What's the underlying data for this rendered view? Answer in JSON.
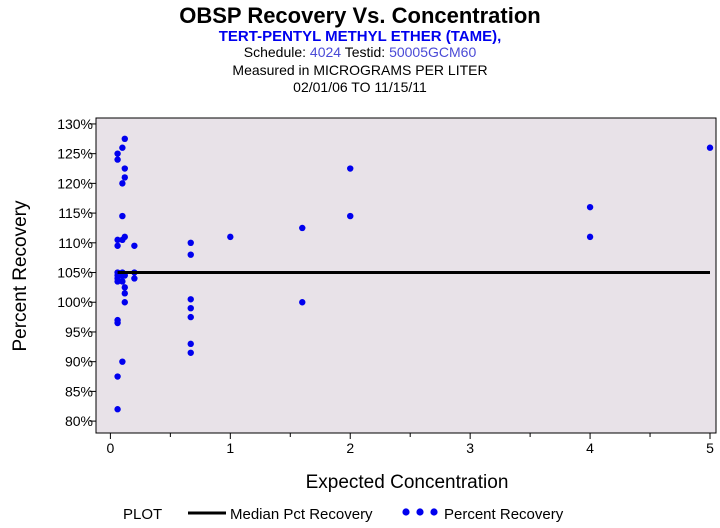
{
  "header": {
    "title": "OBSP Recovery Vs. Concentration",
    "subtitle": "TERT-PENTYL METHYL ETHER (TAME),",
    "schedule_label": "Schedule:",
    "schedule_value": "4024",
    "testid_label": "Testid:",
    "testid_value": "50005GCM60",
    "measured": "Measured in  MICROGRAMS PER LITER",
    "date_range": "02/01/06 TO 11/15/11"
  },
  "legend": {
    "title": "PLOT",
    "median_label": "Median Pct Recovery",
    "recovery_label": "Percent Recovery"
  },
  "colors": {
    "plot_bg": "#e8e2e8",
    "point": "#0000ee",
    "median_line": "#000000",
    "text_blue": "#0000ee"
  },
  "chart_data": {
    "type": "scatter",
    "title": "OBSP Recovery Vs. Concentration",
    "xlabel": "Expected Concentration",
    "ylabel": "Percent Recovery",
    "xlim": [
      -0.12,
      5.05
    ],
    "ylim": [
      78,
      131
    ],
    "x_ticks": [
      0,
      1,
      2,
      3,
      4,
      5
    ],
    "x_tick_labels": [
      "0",
      "1",
      "2",
      "3",
      "4",
      "5"
    ],
    "y_ticks": [
      80,
      85,
      90,
      95,
      100,
      105,
      110,
      115,
      120,
      125,
      130
    ],
    "y_tick_labels": [
      "80%",
      "85%",
      "90%",
      "95%",
      "100%",
      "105%",
      "110%",
      "115%",
      "120%",
      "125%",
      "130%"
    ],
    "series": [
      {
        "name": "Percent Recovery",
        "points": [
          [
            0.06,
            125
          ],
          [
            0.06,
            124
          ],
          [
            0.06,
            110.5
          ],
          [
            0.06,
            109.5
          ],
          [
            0.06,
            105
          ],
          [
            0.06,
            104.5
          ],
          [
            0.06,
            104
          ],
          [
            0.06,
            103.5
          ],
          [
            0.06,
            97
          ],
          [
            0.06,
            96.5
          ],
          [
            0.06,
            87.5
          ],
          [
            0.06,
            82
          ],
          [
            0.1,
            126
          ],
          [
            0.1,
            120
          ],
          [
            0.1,
            114.5
          ],
          [
            0.1,
            110.5
          ],
          [
            0.1,
            105
          ],
          [
            0.1,
            104.5
          ],
          [
            0.1,
            103.5
          ],
          [
            0.1,
            90
          ],
          [
            0.12,
            127.5
          ],
          [
            0.12,
            122.5
          ],
          [
            0.12,
            121
          ],
          [
            0.12,
            111
          ],
          [
            0.12,
            104.5
          ],
          [
            0.12,
            102.5
          ],
          [
            0.12,
            101.5
          ],
          [
            0.12,
            100
          ],
          [
            0.2,
            109.5
          ],
          [
            0.2,
            105
          ],
          [
            0.2,
            104
          ],
          [
            0.67,
            110
          ],
          [
            0.67,
            108
          ],
          [
            0.67,
            100.5
          ],
          [
            0.67,
            99
          ],
          [
            0.67,
            97.5
          ],
          [
            0.67,
            93
          ],
          [
            0.67,
            91.5
          ],
          [
            1,
            111
          ],
          [
            1.6,
            112.5
          ],
          [
            1.6,
            100
          ],
          [
            2,
            122.5
          ],
          [
            2,
            114.5
          ],
          [
            4,
            116
          ],
          [
            4,
            111
          ],
          [
            5,
            126
          ]
        ]
      },
      {
        "name": "Median Pct Recovery",
        "type": "line",
        "x": [
          0.06,
          5
        ],
        "y": [
          105,
          105
        ]
      }
    ]
  }
}
